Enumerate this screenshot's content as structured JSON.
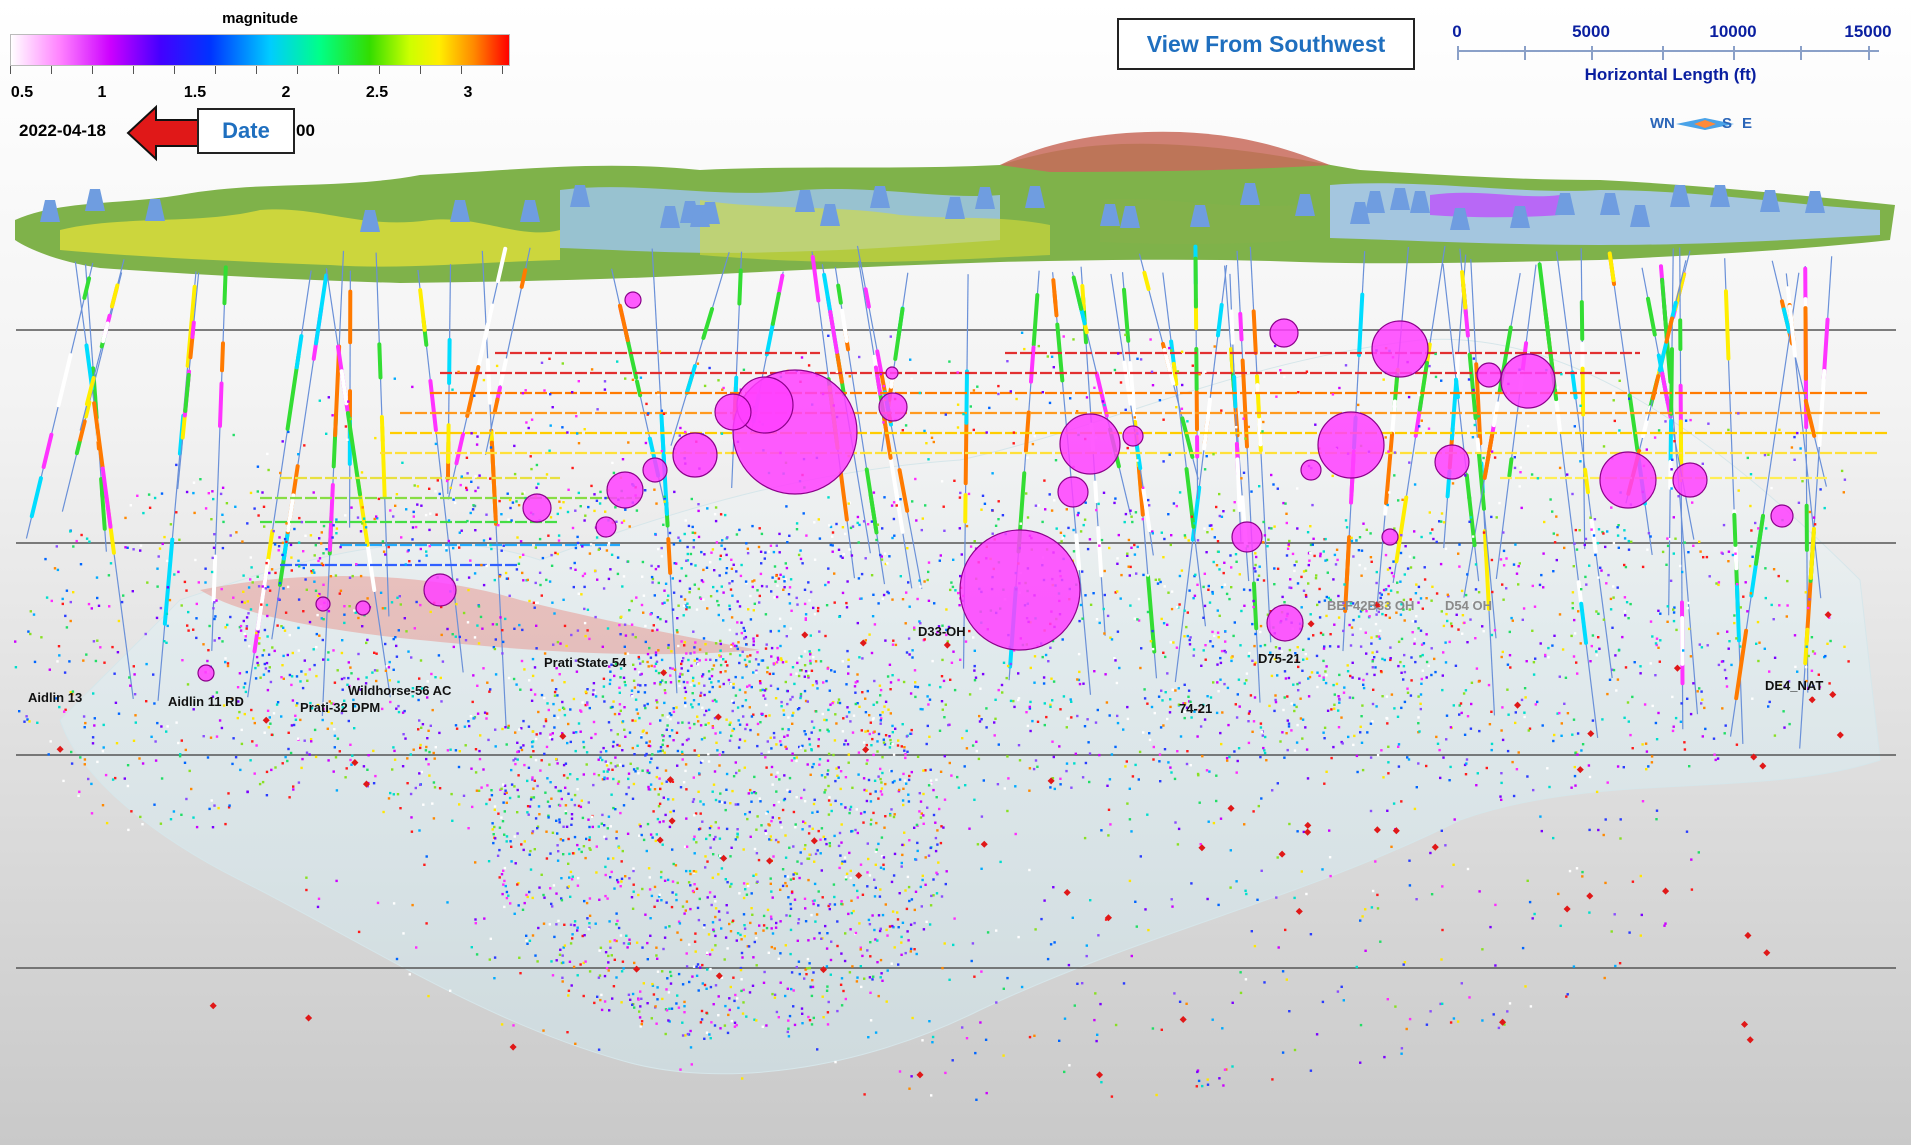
{
  "colorbar": {
    "title": "magnitude",
    "ticks": [
      "0.5",
      "1",
      "1.5",
      "2",
      "2.5",
      "3"
    ]
  },
  "date": {
    "value": "2022-04-18",
    "trailing": "00",
    "label": "Date"
  },
  "view": {
    "label": "View From Southwest"
  },
  "scalebar": {
    "ticks": [
      "0",
      "5000",
      "10000",
      "15000"
    ],
    "caption": "Horizontal Length (ft)"
  },
  "compass": {
    "left": "W",
    "leftB": "N",
    "mid": "S",
    "right": "E"
  },
  "wells": [
    {
      "id": "aidlin-13",
      "label": "Aidlin 13"
    },
    {
      "id": "aidlin-11-rd",
      "label": "Aidlin 11 RD"
    },
    {
      "id": "prati-32-dpm",
      "label": "Prati-32 DPM"
    },
    {
      "id": "wildhorse-56-ac",
      "label": "Wildhorse-56 AC"
    },
    {
      "id": "prati-state-54",
      "label": "Prati State 54"
    },
    {
      "id": "d-oh",
      "label": "D33-OH"
    },
    {
      "id": "bef42b33-oh",
      "label": "BEF42B33 OH"
    },
    {
      "id": "d54-oh",
      "label": "D54 OH"
    },
    {
      "id": "d75-21",
      "label": "D75-21"
    },
    {
      "id": "74-21",
      "label": "74-21"
    },
    {
      "id": "de4-nat",
      "label": "DE4_NAT"
    }
  ],
  "colors": {
    "event_magenta": "#ff40ff",
    "arrow_red": "#e01818",
    "label_blue": "#1f6fbf",
    "scale_blue": "#0a1fa0"
  }
}
